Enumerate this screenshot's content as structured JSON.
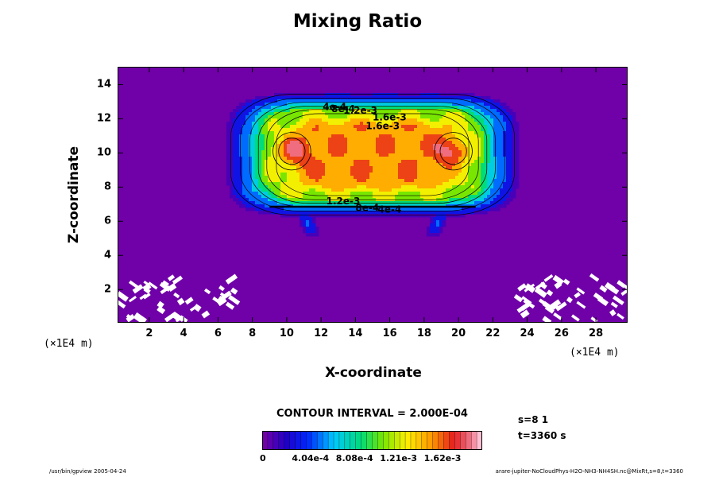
{
  "chart_data": {
    "type": "contour",
    "title": "Mixing Ratio",
    "xlabel": "X-coordinate",
    "ylabel": "Z-coordinate",
    "x_unit": "(×1E4 m)",
    "x_ticks": [
      2,
      4,
      6,
      8,
      10,
      12,
      14,
      16,
      18,
      20,
      22,
      24,
      26,
      28
    ],
    "y_ticks": [
      2,
      4,
      6,
      8,
      10,
      12,
      14
    ],
    "xlim": [
      0.2,
      29.8
    ],
    "ylim": [
      0.1,
      15
    ],
    "contour_interval": "CONTOUR INTERVAL = 2.000E-04",
    "contour_labels": [
      {
        "text": "4e-4",
        "x": 12.1,
        "y": 12.5
      },
      {
        "text": "8e-4",
        "x": 12.6,
        "y": 12.4
      },
      {
        "text": "1.2e-3",
        "x": 13.3,
        "y": 12.3
      },
      {
        "text": "1.6e-3",
        "x": 15.0,
        "y": 11.9
      },
      {
        "text": "1.6e-3",
        "x": 14.6,
        "y": 11.4
      },
      {
        "text": "1.2e-3",
        "x": 12.3,
        "y": 7.0
      },
      {
        "text": "8e-4",
        "x": 14.0,
        "y": 6.6
      },
      {
        "text": "4e-4",
        "x": 15.3,
        "y": 6.5
      }
    ],
    "colorbar": {
      "min": 0,
      "max": 0.00202,
      "labels": [
        "0",
        "4.04e-4",
        "8.08e-4",
        "1.21e-3",
        "1.62e-3"
      ]
    },
    "max_value_location": {
      "x": [
        10.3,
        19.7
      ],
      "y": 10.1
    }
  },
  "info": {
    "section": "s=8 1",
    "time": "t=3360 s"
  },
  "footer": {
    "left": "/usr/bin/gpview 2005-04-24",
    "right": "arare-jupiter-NoCloudPhys-H2O-NH3-NH4SH.nc@MixRt,s=8,t=3360"
  },
  "colors": {
    "background_field": "#7000a8",
    "frame": "#000000"
  }
}
